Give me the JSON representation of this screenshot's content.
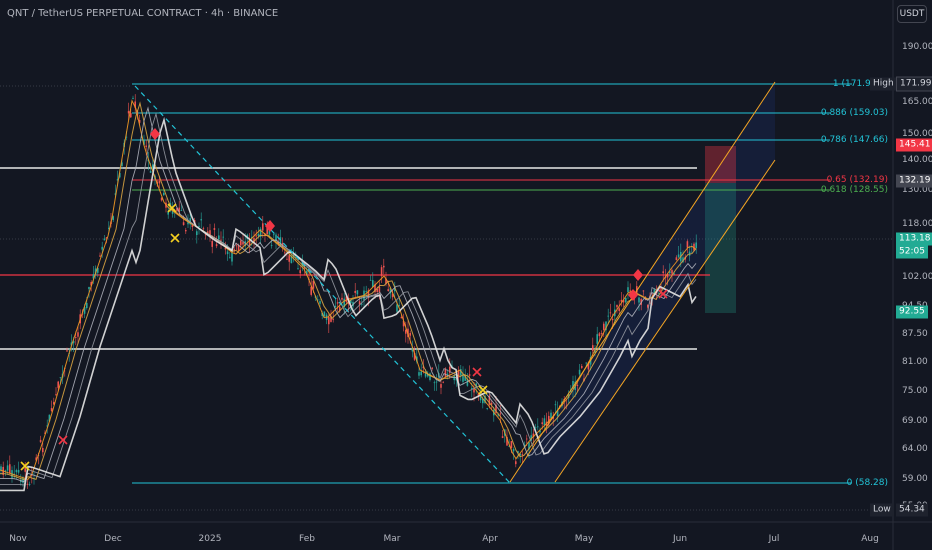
{
  "header": {
    "title": "QNT / TetherUS PERPETUAL CONTRACT · 4h · BINANCE",
    "currency_button": "USDT"
  },
  "price_axis": {
    "ticks": [
      "190.00",
      "165.00",
      "150.00",
      "140.00",
      "130.00",
      "118.00",
      "102.00",
      "94.50",
      "87.50",
      "81.00",
      "75.00",
      "69.00",
      "64.00",
      "59.00",
      "55.00"
    ],
    "tags": {
      "high_label": "High",
      "high_value": "171.99",
      "red_value": "145.41",
      "level_value": "132.19",
      "last_value": "113.18",
      "countdown": "52:05",
      "green_value": "92.55",
      "low_label": "Low",
      "low_value": "54.34"
    }
  },
  "time_axis": {
    "ticks": [
      "Nov",
      "Dec",
      "2025",
      "Feb",
      "Mar",
      "Apr",
      "May",
      "Jun",
      "Jul",
      "Aug"
    ]
  },
  "fibonacci": [
    {
      "label": "1 (171.99)"
    },
    {
      "label": "0.886 (159.03)"
    },
    {
      "label": "0.786 (147.66)"
    },
    {
      "label": "0.65 (132.19)"
    },
    {
      "label": "0.618 (128.55)"
    },
    {
      "label": "0 (58.28)"
    }
  ],
  "colors": {
    "background": "#131722",
    "fib": "#22c3d6",
    "red": "#f23645",
    "green": "#22ab94",
    "white_line": "#e8e8e8",
    "channel": "#f5a623",
    "ema_orange": "#f59a23",
    "ema_white": "#e6e6e6"
  }
}
